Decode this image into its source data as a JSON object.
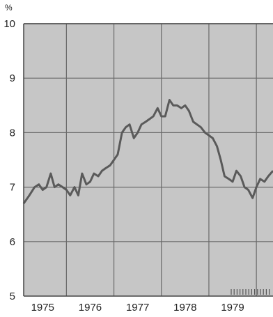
{
  "chart_data": {
    "type": "line",
    "title": "",
    "xlabel": "",
    "ylabel": "%",
    "xlim": [
      1974.6,
      1979.85
    ],
    "ylim": [
      5,
      10
    ],
    "x_ticks": [
      "1975",
      "1976",
      "1977",
      "1978",
      "1979"
    ],
    "y_ticks": [
      "5",
      "6",
      "7",
      "8",
      "9",
      "10"
    ],
    "grid": true,
    "colors": {
      "plot_background": "#c6c6c6",
      "line": "#5a5a5a",
      "grid": "#6a6a6a",
      "axes": "#444444"
    },
    "series": [
      {
        "x": [
          1974.6,
          1974.72,
          1974.83,
          1974.92,
          1975.0,
          1975.08,
          1975.17,
          1975.25,
          1975.33,
          1975.42,
          1975.5,
          1975.58,
          1975.67,
          1975.75,
          1975.83,
          1975.92,
          1976.0,
          1976.08,
          1976.17,
          1976.25,
          1976.33,
          1976.42,
          1976.5,
          1976.58,
          1976.67,
          1976.75,
          1976.83,
          1976.92,
          1977.0,
          1977.08,
          1977.17,
          1977.25,
          1977.33,
          1977.42,
          1977.5,
          1977.58,
          1977.67,
          1977.75,
          1977.83,
          1977.92,
          1978.0,
          1978.08,
          1978.17,
          1978.25,
          1978.33,
          1978.42,
          1978.5,
          1978.58,
          1978.67,
          1978.75,
          1978.83,
          1978.92,
          1979.0,
          1979.08,
          1979.17,
          1979.25,
          1979.33,
          1979.42,
          1979.5,
          1979.58,
          1979.67,
          1979.75,
          1979.85
        ],
        "values": [
          6.7,
          6.85,
          7.0,
          7.05,
          6.95,
          7.0,
          7.25,
          7.0,
          7.05,
          7.0,
          6.95,
          6.85,
          7.0,
          6.85,
          7.25,
          7.05,
          7.1,
          7.25,
          7.2,
          7.3,
          7.35,
          7.4,
          7.5,
          7.6,
          8.0,
          8.1,
          8.15,
          7.9,
          8.0,
          8.15,
          8.2,
          8.25,
          8.3,
          8.45,
          8.3,
          8.3,
          8.6,
          8.5,
          8.5,
          8.45,
          8.5,
          8.4,
          8.2,
          8.15,
          8.1,
          8.0,
          7.95,
          7.9,
          7.75,
          7.5,
          7.2,
          7.15,
          7.1,
          7.3,
          7.2,
          7.0,
          6.95,
          6.8,
          7.0,
          7.15,
          7.1,
          7.2,
          7.3
        ]
      }
    ]
  }
}
